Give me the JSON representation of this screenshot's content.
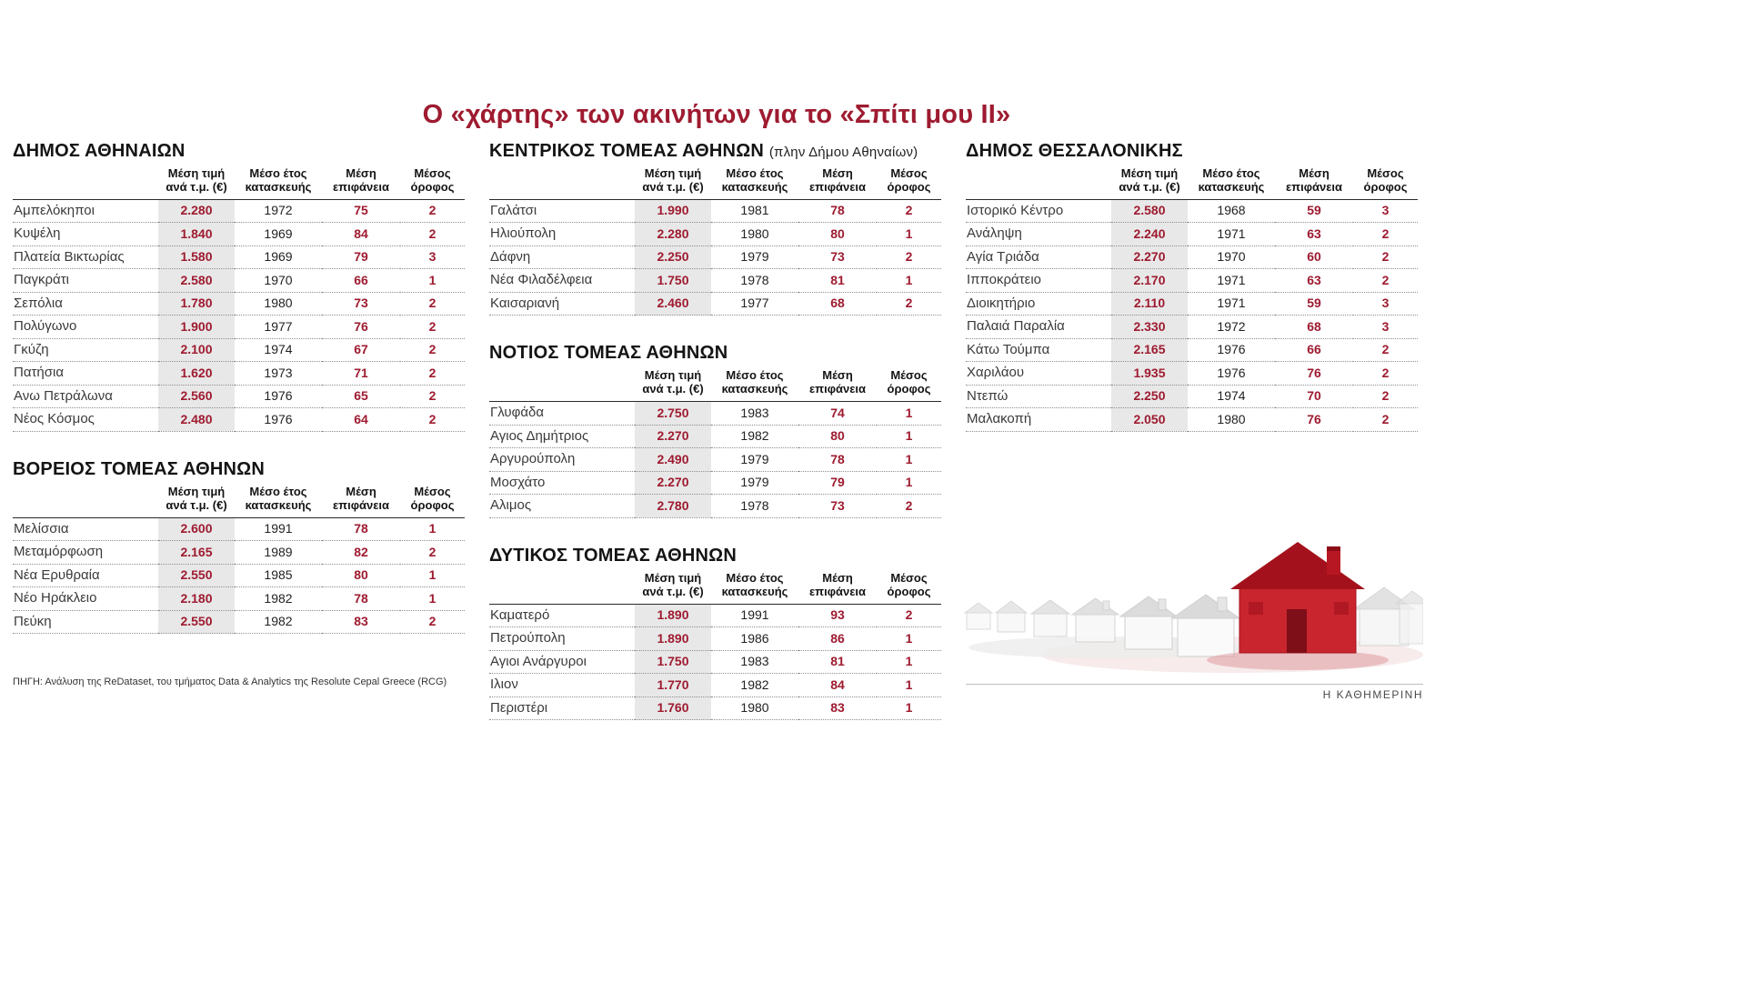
{
  "title": "Ο «χάρτης» των ακινήτων για το «Σπίτι μου ΙΙ»",
  "source": "ΠΗΓΗ: Ανάλυση της ReDataset, του τμήματος Data & Analytics της Resolute Cepal Greece (RCG)",
  "brand": "Η ΚΑΘΗΜΕΡΙΝΗ",
  "colors": {
    "accent": "#9e1b30",
    "price_cell_bg": "#e8e8e8",
    "house_red": "#c9252e"
  },
  "column_headers": [
    "Μέση τιμή\nανά τ.μ. (€)",
    "Μέσο έτος\nκατασκευής",
    "Μέση\nεπιφάνεια",
    "Μέσος\nόροφος"
  ],
  "chart_data": [
    {
      "type": "table",
      "title": "ΔΗΜΟΣ ΑΘΗΝΑΙΩΝ",
      "subtitle": "",
      "columns": [
        "Μέση τιμή\nανά τ.μ. (€)",
        "Μέσο έτος\nκατασκευής",
        "Μέση\nεπιφάνεια",
        "Μέσος\nόροφος"
      ],
      "rows": [
        [
          "Αμπελόκηποι",
          "2.280",
          "1972",
          "75",
          "2"
        ],
        [
          "Κυψέλη",
          "1.840",
          "1969",
          "84",
          "2"
        ],
        [
          "Πλατεία Βικτωρίας",
          "1.580",
          "1969",
          "79",
          "3"
        ],
        [
          "Παγκράτι",
          "2.580",
          "1970",
          "66",
          "1"
        ],
        [
          "Σεπόλια",
          "1.780",
          "1980",
          "73",
          "2"
        ],
        [
          "Πολύγωνο",
          "1.900",
          "1977",
          "76",
          "2"
        ],
        [
          "Γκύζη",
          "2.100",
          "1974",
          "67",
          "2"
        ],
        [
          "Πατήσια",
          "1.620",
          "1973",
          "71",
          "2"
        ],
        [
          "Ανω Πετράλωνα",
          "2.560",
          "1976",
          "65",
          "2"
        ],
        [
          "Νέος Κόσμος",
          "2.480",
          "1976",
          "64",
          "2"
        ]
      ]
    },
    {
      "type": "table",
      "title": "ΒΟΡΕΙΟΣ ΤΟΜΕΑΣ ΑΘΗΝΩΝ",
      "subtitle": "",
      "columns": [
        "Μέση τιμή\nανά τ.μ. (€)",
        "Μέσο έτος\nκατασκευής",
        "Μέση\nεπιφάνεια",
        "Μέσος\nόροφος"
      ],
      "rows": [
        [
          "Μελίσσια",
          "2.600",
          "1991",
          "78",
          "1"
        ],
        [
          "Μεταμόρφωση",
          "2.165",
          "1989",
          "82",
          "2"
        ],
        [
          "Νέα Ερυθραία",
          "2.550",
          "1985",
          "80",
          "1"
        ],
        [
          "Νέο Ηράκλειο",
          "2.180",
          "1982",
          "78",
          "1"
        ],
        [
          "Πεύκη",
          "2.550",
          "1982",
          "83",
          "2"
        ]
      ]
    },
    {
      "type": "table",
      "title": "ΚΕΝΤΡΙΚΟΣ ΤΟΜΕΑΣ ΑΘΗΝΩΝ",
      "subtitle": "(πλην Δήμου Αθηναίων)",
      "columns": [
        "Μέση τιμή\nανά τ.μ. (€)",
        "Μέσο έτος\nκατασκευής",
        "Μέση\nεπιφάνεια",
        "Μέσος\nόροφος"
      ],
      "rows": [
        [
          "Γαλάτσι",
          "1.990",
          "1981",
          "78",
          "2"
        ],
        [
          "Ηλιούπολη",
          "2.280",
          "1980",
          "80",
          "1"
        ],
        [
          "Δάφνη",
          "2.250",
          "1979",
          "73",
          "2"
        ],
        [
          "Νέα Φιλαδέλφεια",
          "1.750",
          "1978",
          "81",
          "1"
        ],
        [
          "Καισαριανή",
          "2.460",
          "1977",
          "68",
          "2"
        ]
      ]
    },
    {
      "type": "table",
      "title": "ΝΟΤΙΟΣ ΤΟΜΕΑΣ ΑΘΗΝΩΝ",
      "subtitle": "",
      "columns": [
        "Μέση τιμή\nανά τ.μ. (€)",
        "Μέσο έτος\nκατασκευής",
        "Μέση\nεπιφάνεια",
        "Μέσος\nόροφος"
      ],
      "rows": [
        [
          "Γλυφάδα",
          "2.750",
          "1983",
          "74",
          "1"
        ],
        [
          "Αγιος Δημήτριος",
          "2.270",
          "1982",
          "80",
          "1"
        ],
        [
          "Αργυρούπολη",
          "2.490",
          "1979",
          "78",
          "1"
        ],
        [
          "Μοσχάτο",
          "2.270",
          "1979",
          "79",
          "1"
        ],
        [
          "Αλιμος",
          "2.780",
          "1978",
          "73",
          "2"
        ]
      ]
    },
    {
      "type": "table",
      "title": "ΔΥΤΙΚΟΣ ΤΟΜΕΑΣ ΑΘΗΝΩΝ",
      "subtitle": "",
      "columns": [
        "Μέση τιμή\nανά τ.μ. (€)",
        "Μέσο έτος\nκατασκευής",
        "Μέση\nεπιφάνεια",
        "Μέσος\nόροφος"
      ],
      "rows": [
        [
          "Καματερό",
          "1.890",
          "1991",
          "93",
          "2"
        ],
        [
          "Πετρούπολη",
          "1.890",
          "1986",
          "86",
          "1"
        ],
        [
          "Αγιοι Ανάργυροι",
          "1.750",
          "1983",
          "81",
          "1"
        ],
        [
          "Ιλιον",
          "1.770",
          "1982",
          "84",
          "1"
        ],
        [
          "Περιστέρι",
          "1.760",
          "1980",
          "83",
          "1"
        ]
      ]
    },
    {
      "type": "table",
      "title": "ΔΗΜΟΣ ΘΕΣΣΑΛΟΝΙΚΗΣ",
      "subtitle": "",
      "columns": [
        "Μέση τιμή\nανά τ.μ. (€)",
        "Μέσο έτος\nκατασκευής",
        "Μέση\nεπιφάνεια",
        "Μέσος\nόροφος"
      ],
      "rows": [
        [
          "Ιστορικό Κέντρο",
          "2.580",
          "1968",
          "59",
          "3"
        ],
        [
          "Ανάληψη",
          "2.240",
          "1971",
          "63",
          "2"
        ],
        [
          "Αγία Τριάδα",
          "2.270",
          "1970",
          "60",
          "2"
        ],
        [
          "Ιπποκράτειο",
          "2.170",
          "1971",
          "63",
          "2"
        ],
        [
          "Διοικητήριο",
          "2.110",
          "1971",
          "59",
          "3"
        ],
        [
          "Παλαιά Παραλία",
          "2.330",
          "1972",
          "68",
          "3"
        ],
        [
          "Κάτω Τούμπα",
          "2.165",
          "1976",
          "66",
          "2"
        ],
        [
          "Χαριλάου",
          "1.935",
          "1976",
          "76",
          "2"
        ],
        [
          "Ντεπώ",
          "2.250",
          "1974",
          "70",
          "2"
        ],
        [
          "Μαλακοπή",
          "2.050",
          "1980",
          "76",
          "2"
        ]
      ]
    }
  ]
}
